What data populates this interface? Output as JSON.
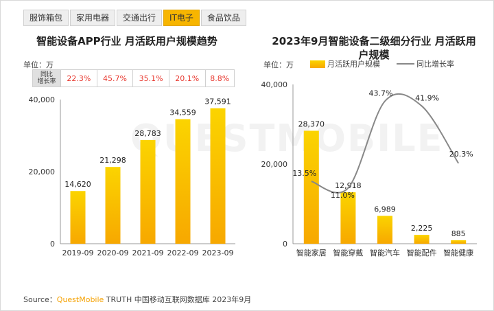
{
  "tabs": [
    {
      "label": "服饰箱包",
      "active": false
    },
    {
      "label": "家用电器",
      "active": false
    },
    {
      "label": "交通出行",
      "active": false
    },
    {
      "label": "IT电子",
      "active": true
    },
    {
      "label": "食品饮品",
      "active": false
    }
  ],
  "left": {
    "unit": "单位：万",
    "growth_header": "同比\n增长率"
  },
  "right": {
    "unit": "单位：万"
  },
  "watermark": "QUESTMOBILE",
  "source": {
    "prefix": "Source：",
    "brand": "QuestMobile",
    "rest": " TRUTH 中国移动互联网数据库 2023年9月"
  },
  "colors": {
    "bar_top": "#fbd400",
    "bar_bottom": "#f7a800",
    "growth_text": "#e8382f",
    "line": "#888888"
  },
  "chart_data": [
    {
      "type": "bar",
      "title": "智能设备APP行业 月活跃用户规模趋势",
      "categories": [
        "2019-09",
        "2020-09",
        "2021-09",
        "2022-09",
        "2023-09"
      ],
      "values": [
        14620,
        21298,
        28783,
        34559,
        37591
      ],
      "value_labels": [
        "14,620",
        "21,298",
        "28,783",
        "34,559",
        "37,591"
      ],
      "growth_rates": [
        "22.3%",
        "45.7%",
        "35.1%",
        "20.1%",
        "8.8%"
      ],
      "ylim": [
        0,
        40000
      ],
      "yticks": [
        "0",
        "20,000",
        "40,000"
      ],
      "ytick_values": [
        0,
        20000,
        40000
      ]
    },
    {
      "type": "bar",
      "title": "2023年9月智能设备二级细分行业 月活跃用户规模",
      "categories": [
        "智能家居",
        "智能穿戴",
        "智能汽车",
        "智能配件",
        "智能健康"
      ],
      "series": [
        {
          "name": "月活跃用户规模",
          "values": [
            28370,
            12918,
            6989,
            2225,
            885
          ]
        },
        {
          "name": "同比增长率",
          "values": [
            13.5,
            11.0,
            43.7,
            41.9,
            20.3
          ],
          "axis": "secondary"
        }
      ],
      "value_labels": [
        "28,370",
        "12,918",
        "6,989",
        "2,225",
        "885"
      ],
      "rate_labels": [
        "13.5%",
        "11.0%",
        "43.7%",
        "41.9%",
        "20.3%"
      ],
      "ylim": [
        0,
        40000
      ],
      "yticks": [
        "0",
        "20,000",
        "40,000"
      ],
      "ytick_values": [
        0,
        20000,
        40000
      ],
      "y2lim": [
        -10,
        50
      ]
    }
  ]
}
